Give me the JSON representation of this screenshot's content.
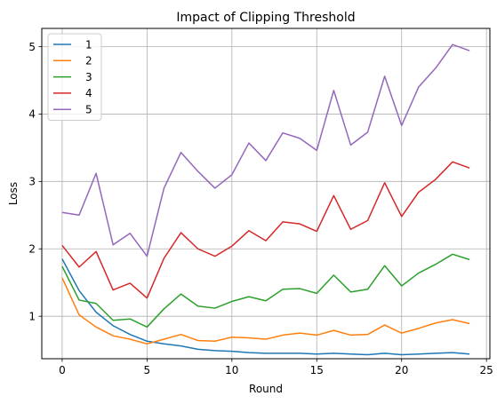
{
  "chart_data": {
    "type": "line",
    "title": "Impact of Clipping Threshold",
    "xlabel": "Round",
    "ylabel": "Loss",
    "xlim": [
      -1.2,
      25.2
    ],
    "ylim": [
      0.37,
      5.27
    ],
    "xticks": [
      0,
      5,
      10,
      15,
      20,
      25
    ],
    "yticks": [
      1,
      2,
      3,
      4,
      5
    ],
    "grid": true,
    "legend_position": "top-left",
    "x": [
      0,
      1,
      2,
      3,
      4,
      5,
      6,
      7,
      8,
      9,
      10,
      11,
      12,
      13,
      14,
      15,
      16,
      17,
      18,
      19,
      20,
      21,
      22,
      23,
      24
    ],
    "series": [
      {
        "name": "1",
        "color": "#1f77b4",
        "values": [
          1.85,
          1.38,
          1.06,
          0.86,
          0.73,
          0.63,
          0.59,
          0.56,
          0.51,
          0.49,
          0.48,
          0.46,
          0.45,
          0.45,
          0.45,
          0.44,
          0.45,
          0.44,
          0.43,
          0.45,
          0.43,
          0.44,
          0.45,
          0.46,
          0.44
        ]
      },
      {
        "name": "2",
        "color": "#ff7f0e",
        "values": [
          1.57,
          1.02,
          0.84,
          0.71,
          0.66,
          0.59,
          0.66,
          0.73,
          0.64,
          0.63,
          0.69,
          0.68,
          0.66,
          0.72,
          0.75,
          0.72,
          0.79,
          0.72,
          0.73,
          0.87,
          0.75,
          0.82,
          0.9,
          0.95,
          0.89
        ]
      },
      {
        "name": "3",
        "color": "#2ca02c",
        "values": [
          1.74,
          1.24,
          1.19,
          0.94,
          0.96,
          0.84,
          1.11,
          1.33,
          1.15,
          1.12,
          1.22,
          1.29,
          1.23,
          1.4,
          1.41,
          1.34,
          1.61,
          1.36,
          1.4,
          1.75,
          1.45,
          1.64,
          1.77,
          1.92,
          1.84
        ]
      },
      {
        "name": "4",
        "color": "#d62728",
        "values": [
          2.05,
          1.73,
          1.96,
          1.39,
          1.49,
          1.27,
          1.86,
          2.24,
          2.0,
          1.89,
          2.04,
          2.27,
          2.12,
          2.4,
          2.37,
          2.26,
          2.79,
          2.29,
          2.42,
          2.98,
          2.48,
          2.84,
          3.03,
          3.29,
          3.2
        ]
      },
      {
        "name": "5",
        "color": "#9467bd",
        "values": [
          2.54,
          2.5,
          3.12,
          2.06,
          2.23,
          1.89,
          2.9,
          3.43,
          3.15,
          2.9,
          3.1,
          3.57,
          3.31,
          3.72,
          3.64,
          3.46,
          4.35,
          3.54,
          3.73,
          4.56,
          3.83,
          4.4,
          4.68,
          5.03,
          4.94
        ]
      }
    ]
  }
}
